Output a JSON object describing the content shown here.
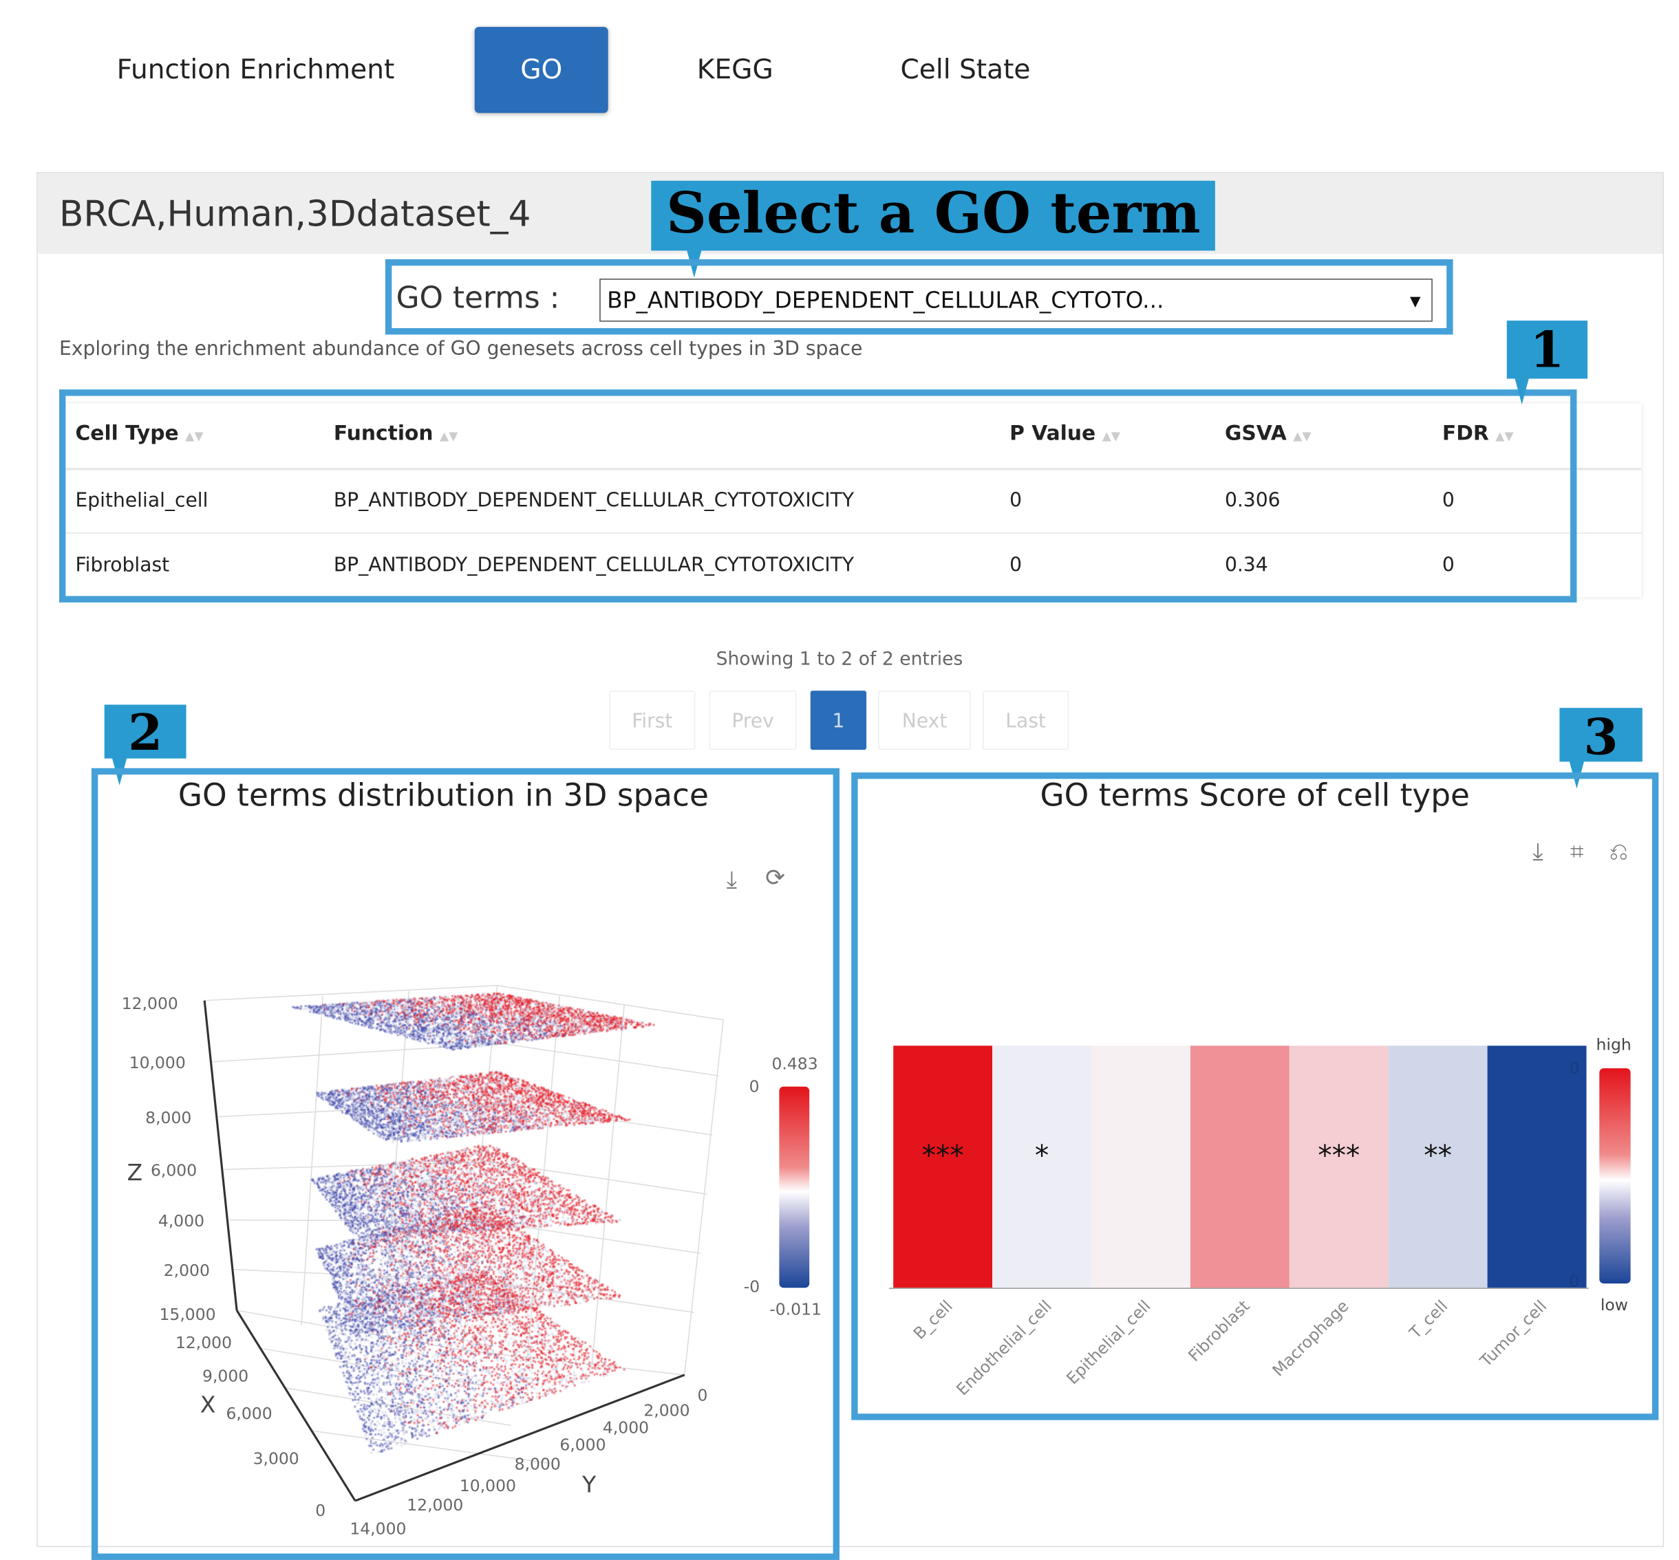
{
  "tabs": [
    {
      "label": "Function Enrichment",
      "active": false
    },
    {
      "label": "GO",
      "active": true
    },
    {
      "label": "KEGG",
      "active": false
    },
    {
      "label": "Cell State",
      "active": false
    }
  ],
  "dataset_title": "BRCA,Human,3Ddataset_4",
  "annotations": {
    "select_callout": "Select a GO term",
    "callout_1": "1",
    "callout_2": "2",
    "callout_3": "3"
  },
  "go_select": {
    "label": "GO terms :",
    "value": "BP_ANTIBODY_DEPENDENT_CELLULAR_CYTOTO...",
    "chevron": "▾"
  },
  "description": "Exploring the enrichment abundance of GO genesets across cell types in 3D space",
  "table": {
    "columns": [
      "Cell Type",
      "Function",
      "P Value",
      "GSVA",
      "FDR"
    ],
    "sort_icon": "▲▼",
    "rows": [
      [
        "Epithelial_cell",
        "BP_ANTIBODY_DEPENDENT_CELLULAR_CYTOTOXICITY",
        "0",
        "0.306",
        "0"
      ],
      [
        "Fibroblast",
        "BP_ANTIBODY_DEPENDENT_CELLULAR_CYTOTOXICITY",
        "0",
        "0.34",
        "0"
      ]
    ]
  },
  "table_info": "Showing 1 to 2 of 2 entries",
  "pagination": {
    "first": "First",
    "prev": "Prev",
    "current": "1",
    "next": "Next",
    "last": "Last"
  },
  "colors": {
    "accent": "#2a6db8",
    "callout": "#2a9bd0",
    "outline": "#45a0d8",
    "high": "#e3141b",
    "low": "#1b4597"
  },
  "chart_data": [
    {
      "type": "scatter",
      "title": "GO terms distribution in 3D space",
      "toolbar": [
        "download-icon",
        "refresh-icon"
      ],
      "axes": {
        "z": {
          "label": "Z",
          "ticks": [
            "12,000",
            "10,000",
            "8,000",
            "6,000",
            "4,000",
            "2,000"
          ]
        },
        "x": {
          "label": "X",
          "ticks": [
            "15,000",
            "12,000",
            "9,000",
            "6,000",
            "3,000",
            "0"
          ]
        },
        "y": {
          "label": "Y",
          "ticks": [
            "14,000",
            "12,000",
            "10,000",
            "8,000",
            "6,000",
            "4,000",
            "2,000",
            "0"
          ]
        }
      },
      "layers": 5,
      "colorbar": {
        "max_label": "0.483",
        "min_label": "-0.011",
        "top_tick": "0",
        "bottom_tick": "-0",
        "max": 0.483,
        "min": -0.011
      }
    },
    {
      "type": "heatmap",
      "title": "GO terms Score of cell type",
      "toolbar": [
        "download-icon",
        "crop-icon",
        "restore-icon"
      ],
      "categories": [
        "B_cell",
        "Endothelial_cell",
        "Epithelial_cell",
        "Fibroblast",
        "Macrophage",
        "T_cell",
        "Tumor_cell"
      ],
      "values": [
        1.0,
        -0.05,
        0.03,
        0.45,
        0.18,
        -0.18,
        -1.0
      ],
      "significance": [
        "***",
        "*",
        "",
        "",
        "***",
        "**",
        ""
      ],
      "legend": {
        "high": "high",
        "low": "low",
        "top_tick": "0",
        "bottom_tick": "0"
      }
    }
  ]
}
